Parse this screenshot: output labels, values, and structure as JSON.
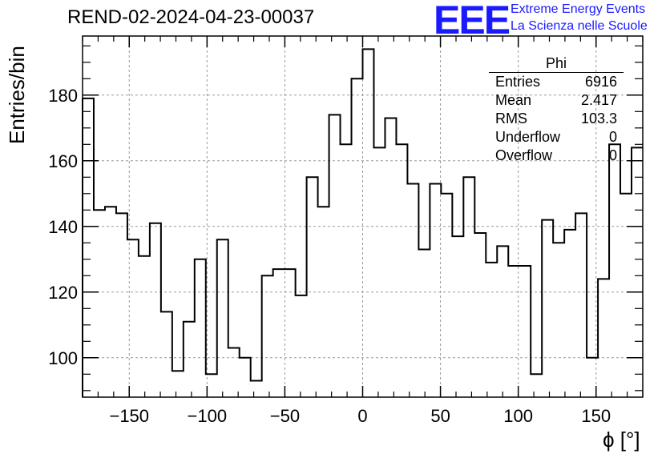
{
  "title": "REND-02-2024-04-23-00037",
  "logo": {
    "mark": "EEE",
    "line1": "Extreme Energy Events",
    "line2": "La Scienza nelle Scuole"
  },
  "colors": {
    "logo": "#1a1aff",
    "line": "#000000",
    "grid": "#999999"
  },
  "stats": {
    "title": "Phi",
    "rows": [
      {
        "label": "Entries",
        "value": "6916"
      },
      {
        "label": "Mean",
        "value": "2.417"
      },
      {
        "label": "RMS",
        "value": "103.3"
      },
      {
        "label": "Underflow",
        "value": "0"
      },
      {
        "label": "Overflow",
        "value": "0"
      }
    ]
  },
  "chart_data": {
    "type": "step-histogram",
    "title": "REND-02-2024-04-23-00037",
    "xlabel": "ϕ [°]",
    "ylabel": "Entries/bin",
    "xlim": [
      -180,
      180
    ],
    "ylim": [
      88,
      198
    ],
    "xticks": [
      -150,
      -100,
      -50,
      0,
      50,
      100,
      150
    ],
    "xtick_labels": [
      "−150",
      "−100",
      "−50",
      "0",
      "50",
      "100",
      "150"
    ],
    "yticks": [
      100,
      120,
      140,
      160,
      180
    ],
    "grid": true,
    "bin_width": 7.2,
    "values": [
      179,
      145,
      146,
      144,
      136,
      131,
      141,
      114,
      96,
      111,
      130,
      95,
      136,
      103,
      100,
      93,
      125,
      127,
      127,
      119,
      155,
      146,
      174,
      165,
      185,
      194,
      164,
      173,
      165,
      153,
      133,
      153,
      150,
      137,
      155,
      138,
      129,
      134,
      128,
      128,
      95,
      142,
      135,
      139,
      144,
      100,
      124,
      165,
      150,
      164
    ]
  }
}
